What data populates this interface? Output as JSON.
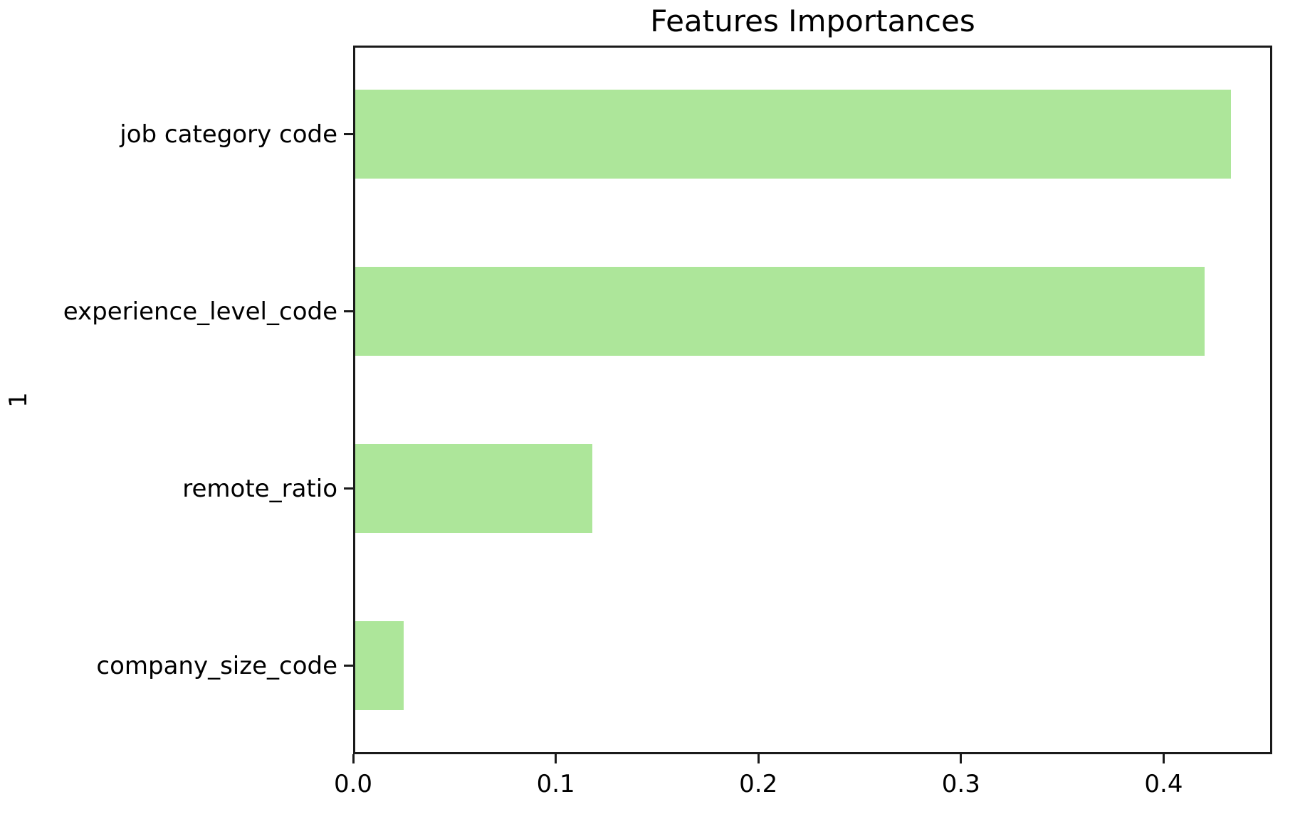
{
  "chart_data": {
    "type": "bar",
    "orientation": "horizontal",
    "title": "Features Importances",
    "xlabel": "",
    "ylabel": "1",
    "categories": [
      "job category code",
      "experience_level_code",
      "remote_ratio",
      "company_size_code"
    ],
    "values": [
      0.432,
      0.419,
      0.117,
      0.024
    ],
    "xlim": [
      0.0,
      0.4536
    ],
    "xticks": [
      0.0,
      0.1,
      0.2,
      0.3,
      0.4
    ],
    "xtick_labels": [
      "0.0",
      "0.1",
      "0.2",
      "0.3",
      "0.4"
    ],
    "bar_color": "#ade69a",
    "bar_fraction_of_slot": 0.5,
    "grid": false,
    "legend": false,
    "background_color": "#ffffff",
    "spine_color": "#1a1a1a",
    "text_color": "#000000"
  }
}
